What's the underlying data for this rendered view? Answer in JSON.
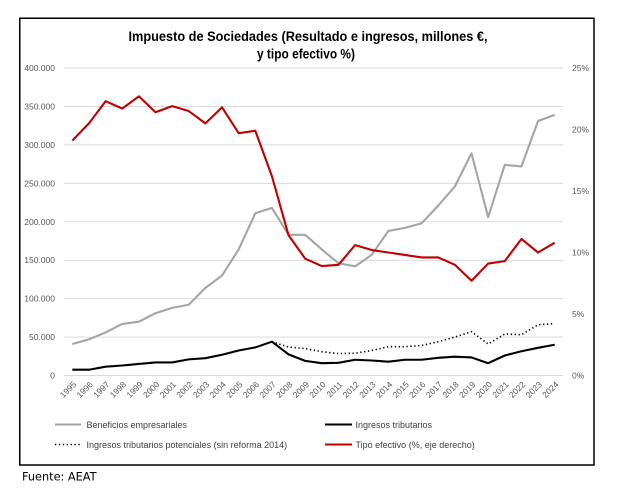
{
  "chart_data": {
    "type": "line",
    "title": "Impuesto de Sociedades (Resultado e ingresos, millones €, y tipo efectivo %)",
    "title_lines": [
      "Impuesto de Sociedades (Resultado e ingresos, millones €,",
      "y tipo efectivo %)"
    ],
    "xlabel": "",
    "ylabel": "",
    "x": [
      "1995",
      "1996",
      "1997",
      "1998",
      "1999",
      "2000",
      "2001",
      "2002",
      "2003",
      "2004",
      "2005",
      "2006",
      "2007",
      "2008",
      "2009",
      "2010",
      "2011",
      "2012",
      "2013",
      "2014",
      "2015",
      "2016",
      "2017",
      "2018",
      "2019",
      "2020",
      "2021",
      "2022",
      "2023",
      "2024"
    ],
    "series": [
      {
        "name": "Beneficios empresariales",
        "axis": "left",
        "color": "#A5A5A5",
        "style": "solid",
        "values": [
          41000,
          47000,
          56000,
          67000,
          70000,
          81000,
          88000,
          92000,
          114000,
          130000,
          164000,
          211000,
          218000,
          183000,
          183000,
          164000,
          146000,
          142000,
          157000,
          188000,
          192000,
          198000,
          221000,
          246000,
          289000,
          206000,
          274000,
          272000,
          331000,
          339000
        ]
      },
      {
        "name": "Ingresos tributarios",
        "axis": "left",
        "color": "#000000",
        "style": "solid",
        "values": [
          7500,
          7500,
          11500,
          13000,
          15000,
          17000,
          17000,
          21000,
          22500,
          27000,
          32500,
          36500,
          44000,
          27500,
          19000,
          16000,
          16500,
          20500,
          19500,
          18000,
          20500,
          20500,
          23000,
          24500,
          23500,
          16000,
          26000,
          31500,
          36000,
          40000
        ]
      },
      {
        "name": "Ingresos tributarios potenciales (sin reforma 2014)",
        "axis": "left",
        "color": "#000000",
        "style": "dotted",
        "values": [
          null,
          null,
          null,
          null,
          null,
          null,
          null,
          null,
          null,
          null,
          null,
          null,
          44000,
          37000,
          35000,
          31000,
          28500,
          29000,
          32500,
          37500,
          37500,
          39000,
          44000,
          50000,
          57000,
          41000,
          54000,
          53000,
          66000,
          67500
        ]
      },
      {
        "name": "Tipo efectivo (%, eje derecho)",
        "axis": "right",
        "color": "#C00000",
        "style": "solid",
        "values": [
          19.1,
          20.5,
          22.3,
          21.7,
          22.7,
          21.4,
          21.9,
          21.5,
          20.5,
          21.8,
          19.7,
          19.9,
          16.2,
          11.4,
          9.5,
          8.9,
          9.0,
          10.6,
          10.2,
          10.0,
          9.8,
          9.6,
          9.6,
          9.0,
          7.7,
          9.1,
          9.3,
          11.1,
          10.0,
          10.8
        ]
      }
    ],
    "y_left": {
      "range": [
        0,
        400000
      ],
      "ticks": [
        0,
        50000,
        100000,
        150000,
        200000,
        250000,
        300000,
        350000,
        400000
      ],
      "tick_labels": [
        "0",
        "50.000",
        "100.000",
        "150.000",
        "200.000",
        "250.000",
        "300.000",
        "350.000",
        "400.000"
      ]
    },
    "y_right": {
      "range": [
        0,
        25
      ],
      "ticks": [
        0,
        5,
        10,
        15,
        20,
        25
      ],
      "tick_labels": [
        "0%",
        "5%",
        "10%",
        "15%",
        "20%",
        "25%"
      ]
    },
    "grid": true,
    "grid_color": "#D9D9D9",
    "legend_position": "bottom"
  },
  "source": "Fuente: AEAT"
}
